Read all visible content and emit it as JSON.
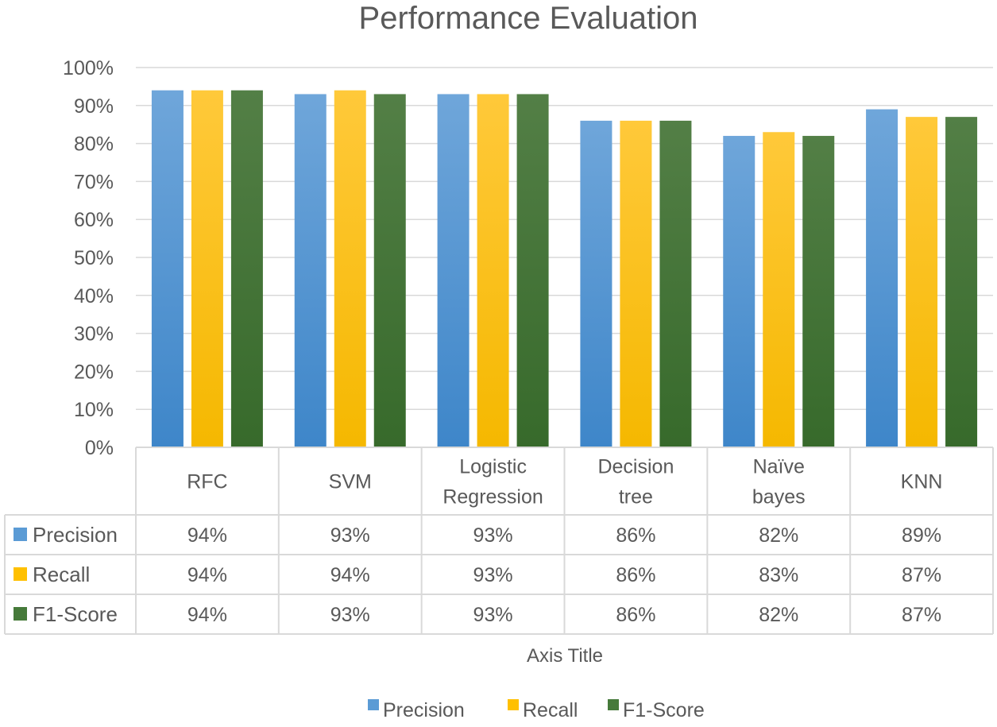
{
  "chart_data": {
    "type": "bar",
    "title": "Performance Evaluation",
    "xlabel": "Axis Title",
    "ylabel": "",
    "ylim": [
      0,
      100
    ],
    "yticks": [
      0,
      10,
      20,
      30,
      40,
      50,
      60,
      70,
      80,
      90,
      100
    ],
    "ytick_format": "{v}%",
    "value_format": "{v}%",
    "grid": true,
    "legend_position": "bottom",
    "data_table": true,
    "categories": [
      [
        "RFC"
      ],
      [
        "SVM"
      ],
      [
        "Logistic",
        "Regression"
      ],
      [
        "Decision",
        "tree"
      ],
      [
        "Naïve",
        "bayes"
      ],
      [
        "KNN"
      ]
    ],
    "series": [
      {
        "name": "Precision",
        "color": "#5B9BD5",
        "values": [
          94,
          93,
          93,
          86,
          82,
          89
        ]
      },
      {
        "name": "Recall",
        "color": "#FFC000",
        "values": [
          94,
          94,
          93,
          86,
          83,
          87
        ]
      },
      {
        "name": "F1-Score",
        "color": "#467A3A",
        "values": [
          94,
          93,
          93,
          86,
          82,
          87
        ]
      }
    ]
  }
}
